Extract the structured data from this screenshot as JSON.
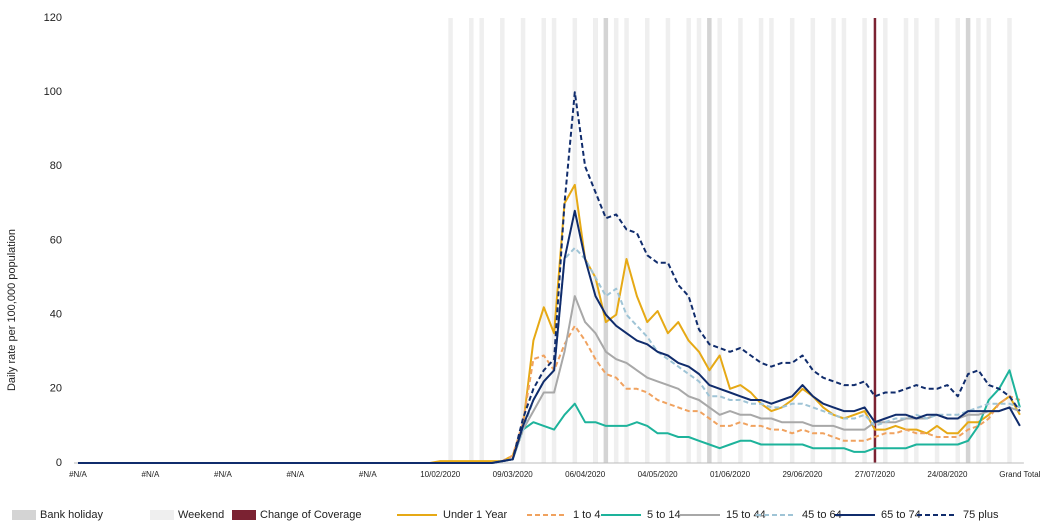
{
  "chart_data": {
    "type": "line",
    "y_label": "Daily rate per 100,000 population",
    "ylim": [
      0,
      120
    ],
    "yticks": [
      0,
      20,
      40,
      60,
      80,
      100,
      120
    ],
    "categories": [
      "#N/A",
      null,
      null,
      null,
      null,
      null,
      null,
      "#N/A",
      null,
      null,
      null,
      null,
      null,
      null,
      "#N/A",
      null,
      null,
      null,
      null,
      null,
      null,
      "#N/A",
      null,
      null,
      null,
      null,
      null,
      null,
      "#N/A",
      null,
      null,
      null,
      null,
      null,
      null,
      "10/02/2020",
      null,
      null,
      null,
      null,
      null,
      null,
      "09/03/2020",
      null,
      null,
      null,
      null,
      null,
      null,
      "06/04/2020",
      null,
      null,
      null,
      null,
      null,
      null,
      "04/05/2020",
      null,
      null,
      null,
      null,
      null,
      null,
      "01/06/2020",
      null,
      null,
      null,
      null,
      null,
      null,
      "29/06/2020",
      null,
      null,
      null,
      null,
      null,
      null,
      "27/07/2020",
      null,
      null,
      null,
      null,
      null,
      null,
      "24/08/2020",
      null,
      null,
      null,
      null,
      null,
      null,
      "Grand Total"
    ],
    "series": [
      {
        "name": "Bank holiday",
        "style": "band",
        "color": "#d4d4d4",
        "values": [
          null,
          null,
          null,
          null,
          null,
          null,
          null,
          null,
          null,
          null,
          null,
          null,
          null,
          null,
          null,
          null,
          null,
          null,
          null,
          null,
          null,
          null,
          null,
          null,
          null,
          null,
          null,
          null,
          null,
          null,
          null,
          null,
          null,
          null,
          null,
          null,
          null,
          null,
          null,
          null,
          null,
          null,
          null,
          null,
          null,
          null,
          null,
          null,
          null,
          null,
          120,
          120,
          null,
          null,
          null,
          null,
          null,
          null,
          null,
          null,
          null,
          120,
          null,
          null,
          null,
          null,
          null,
          null,
          null,
          null,
          null,
          null,
          null,
          null,
          null,
          null,
          null,
          null,
          null,
          null,
          null,
          null,
          null,
          null,
          null,
          null,
          120,
          null,
          null,
          null,
          null,
          null
        ]
      },
      {
        "name": "Weekend",
        "style": "band",
        "color": "#efefef",
        "values": [
          null,
          null,
          null,
          null,
          null,
          null,
          null,
          null,
          null,
          null,
          null,
          null,
          null,
          null,
          null,
          null,
          null,
          null,
          null,
          null,
          null,
          null,
          null,
          null,
          null,
          null,
          null,
          null,
          null,
          null,
          null,
          null,
          null,
          null,
          null,
          null,
          120,
          null,
          120,
          120,
          null,
          120,
          null,
          120,
          null,
          120,
          120,
          null,
          120,
          null,
          120,
          null,
          120,
          120,
          null,
          120,
          null,
          120,
          null,
          120,
          120,
          null,
          120,
          null,
          120,
          null,
          120,
          120,
          null,
          120,
          null,
          120,
          null,
          120,
          120,
          null,
          120,
          null,
          120,
          null,
          120,
          120,
          null,
          120,
          null,
          120,
          null,
          120,
          120,
          null,
          120,
          null
        ]
      },
      {
        "name": "Change of Coverage",
        "style": "marker",
        "color": "#7b2232",
        "values": [
          null,
          null,
          null,
          null,
          null,
          null,
          null,
          null,
          null,
          null,
          null,
          null,
          null,
          null,
          null,
          null,
          null,
          null,
          null,
          null,
          null,
          null,
          null,
          null,
          null,
          null,
          null,
          null,
          null,
          null,
          null,
          null,
          null,
          null,
          null,
          null,
          null,
          null,
          null,
          null,
          null,
          null,
          null,
          null,
          null,
          null,
          null,
          null,
          null,
          null,
          null,
          null,
          null,
          null,
          null,
          null,
          null,
          null,
          null,
          null,
          null,
          null,
          null,
          null,
          null,
          null,
          null,
          null,
          null,
          null,
          null,
          null,
          null,
          null,
          null,
          null,
          null,
          120,
          null,
          null,
          null,
          null,
          null,
          null,
          null,
          null,
          null,
          null,
          null,
          null,
          null,
          null
        ]
      },
      {
        "name": "Under 1 Year",
        "style": "solid",
        "color": "#e6a915",
        "values": [
          0,
          0,
          0,
          0,
          0,
          0,
          0,
          0,
          0,
          0,
          0,
          0,
          0,
          0,
          0,
          0,
          0,
          0,
          0,
          0,
          0,
          0,
          0,
          0,
          0,
          0,
          0,
          0,
          0,
          0,
          0,
          0,
          0,
          0,
          0,
          0.5,
          0.5,
          0.5,
          0.5,
          0.5,
          0.5,
          0.5,
          2,
          10,
          33,
          42,
          35,
          70,
          75,
          55,
          50,
          38,
          40,
          55,
          45,
          38,
          41,
          35,
          38,
          33,
          30,
          25,
          29,
          20,
          21,
          19,
          16,
          14,
          15,
          17,
          20,
          18,
          15,
          13,
          12,
          13,
          14,
          9,
          9,
          10,
          9,
          9,
          8,
          10,
          8,
          8,
          11,
          11,
          13,
          16,
          18,
          13
        ]
      },
      {
        "name": "1 to 4",
        "style": "dashed",
        "color": "#f0a25f",
        "values": [
          0,
          0,
          0,
          0,
          0,
          0,
          0,
          0,
          0,
          0,
          0,
          0,
          0,
          0,
          0,
          0,
          0,
          0,
          0,
          0,
          0,
          0,
          0,
          0,
          0,
          0,
          0,
          0,
          0,
          0,
          0,
          0,
          0,
          0,
          0,
          0,
          0,
          0,
          0,
          0,
          0,
          0.5,
          2,
          11,
          28,
          29,
          25,
          32,
          37,
          33,
          28,
          24,
          23,
          20,
          20,
          19,
          17,
          16,
          15,
          14,
          14,
          12,
          10,
          10,
          11,
          10,
          10,
          9,
          9,
          8,
          9,
          8,
          8,
          7,
          6,
          6,
          6,
          7,
          8,
          8,
          9,
          8,
          8,
          7,
          7,
          7,
          9,
          10,
          12,
          16,
          18,
          17
        ]
      },
      {
        "name": "5 to 14",
        "style": "solid",
        "color": "#1db39b",
        "values": [
          0,
          0,
          0,
          0,
          0,
          0,
          0,
          0,
          0,
          0,
          0,
          0,
          0,
          0,
          0,
          0,
          0,
          0,
          0,
          0,
          0,
          0,
          0,
          0,
          0,
          0,
          0,
          0,
          0,
          0,
          0,
          0,
          0,
          0,
          0,
          0,
          0,
          0,
          0,
          0,
          0,
          0.5,
          1,
          9,
          11,
          10,
          9,
          13,
          16,
          11,
          11,
          10,
          10,
          10,
          11,
          10,
          8,
          8,
          7,
          7,
          6,
          5,
          4,
          5,
          6,
          6,
          5,
          5,
          5,
          5,
          5,
          4,
          4,
          4,
          4,
          3,
          3,
          4,
          4,
          4,
          4,
          5,
          5,
          5,
          5,
          5,
          6,
          10,
          17,
          20,
          25,
          15
        ]
      },
      {
        "name": "15 to 44",
        "style": "solid",
        "color": "#a8a8a8",
        "values": [
          0,
          0,
          0,
          0,
          0,
          0,
          0,
          0,
          0,
          0,
          0,
          0,
          0,
          0,
          0,
          0,
          0,
          0,
          0,
          0,
          0,
          0,
          0,
          0,
          0,
          0,
          0,
          0,
          0,
          0,
          0,
          0,
          0,
          0,
          0,
          0,
          0,
          0,
          0,
          0,
          0,
          0.5,
          1,
          9,
          14,
          19,
          19,
          30,
          45,
          38,
          35,
          30,
          28,
          27,
          25,
          23,
          22,
          21,
          20,
          18,
          17,
          15,
          13,
          14,
          13,
          13,
          12,
          12,
          11,
          11,
          11,
          10,
          10,
          10,
          9,
          9,
          9,
          11,
          11,
          11,
          12,
          12,
          12,
          13,
          12,
          12,
          13,
          13,
          14,
          14,
          15,
          14
        ]
      },
      {
        "name": "45 to 64",
        "style": "dashed",
        "color": "#9fc4d6",
        "values": [
          0,
          0,
          0,
          0,
          0,
          0,
          0,
          0,
          0,
          0,
          0,
          0,
          0,
          0,
          0,
          0,
          0,
          0,
          0,
          0,
          0,
          0,
          0,
          0,
          0,
          0,
          0,
          0,
          0,
          0,
          0,
          0,
          0,
          0,
          0,
          0,
          0,
          0,
          0,
          0,
          0,
          0.5,
          1,
          9,
          17,
          22,
          25,
          55,
          58,
          55,
          50,
          45,
          47,
          40,
          37,
          34,
          30,
          28,
          26,
          24,
          22,
          18,
          18,
          17,
          17,
          16,
          16,
          15,
          15,
          16,
          16,
          15,
          14,
          13,
          12,
          12,
          13,
          10,
          11,
          12,
          12,
          13,
          12,
          13,
          13,
          13,
          14,
          15,
          16,
          16,
          16,
          15
        ]
      },
      {
        "name": "65 to 74",
        "style": "solid",
        "color": "#102c6c",
        "values": [
          0,
          0,
          0,
          0,
          0,
          0,
          0,
          0,
          0,
          0,
          0,
          0,
          0,
          0,
          0,
          0,
          0,
          0,
          0,
          0,
          0,
          0,
          0,
          0,
          0,
          0,
          0,
          0,
          0,
          0,
          0,
          0,
          0,
          0,
          0,
          0,
          0,
          0,
          0,
          0,
          0,
          0.5,
          1,
          10,
          17,
          22,
          25,
          55,
          68,
          55,
          45,
          40,
          37,
          35,
          33,
          32,
          30,
          29,
          27,
          26,
          24,
          21,
          20,
          19,
          18,
          17,
          17,
          16,
          17,
          18,
          21,
          18,
          16,
          15,
          14,
          14,
          15,
          11,
          12,
          13,
          13,
          12,
          13,
          13,
          12,
          12,
          14,
          14,
          14,
          14,
          15,
          10
        ]
      },
      {
        "name": "75 plus",
        "style": "dashed",
        "color": "#102c6c",
        "values": [
          0,
          0,
          0,
          0,
          0,
          0,
          0,
          0,
          0,
          0,
          0,
          0,
          0,
          0,
          0,
          0,
          0,
          0,
          0,
          0,
          0,
          0,
          0,
          0,
          0,
          0,
          0,
          0,
          0,
          0,
          0,
          0,
          0,
          0,
          0,
          0,
          0,
          0,
          0,
          0,
          0,
          0.5,
          1,
          12,
          20,
          25,
          28,
          70,
          100,
          80,
          73,
          66,
          67,
          63,
          62,
          56,
          54,
          54,
          48,
          45,
          36,
          32,
          31,
          30,
          31,
          29,
          27,
          26,
          27,
          27,
          29,
          25,
          23,
          22,
          21,
          21,
          22,
          18,
          19,
          19,
          20,
          21,
          20,
          20,
          21,
          18,
          24,
          25,
          21,
          20,
          18,
          14
        ]
      }
    ]
  }
}
